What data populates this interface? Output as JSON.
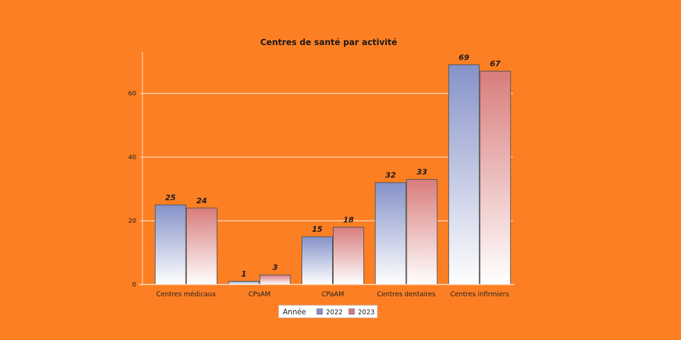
{
  "chart_data": {
    "type": "bar",
    "title": "Centres de santé par activité",
    "categories": [
      "Centres médicaux",
      "CPsAM",
      "CPaAM",
      "Centres dentaires",
      "Centres infirmiers"
    ],
    "series": [
      {
        "name": "2022",
        "values": [
          25,
          1,
          15,
          32,
          69
        ],
        "color": "#8592c8"
      },
      {
        "name": "2023",
        "values": [
          24,
          3,
          18,
          33,
          67
        ],
        "color": "#d97c7c"
      }
    ],
    "ylim": [
      0,
      73
    ],
    "yticks": [
      0,
      20,
      40,
      60
    ],
    "grid": true,
    "legend": {
      "title": "Année",
      "placement": "bottom-center"
    }
  },
  "colors": {
    "background": "#fd7f23",
    "gridline": "#fde0c8"
  }
}
